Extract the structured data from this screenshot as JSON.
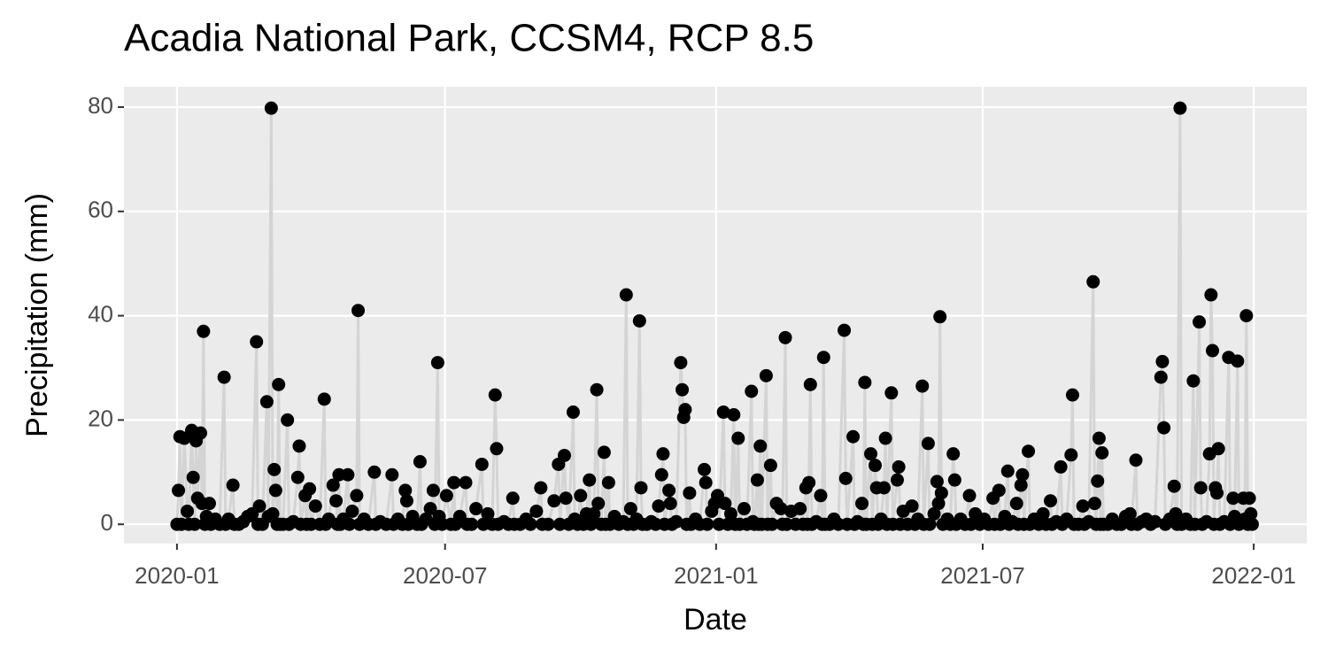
{
  "chart_data": {
    "type": "scatter-line",
    "title": "Acadia National Park, CCSM4, RCP 8.5",
    "x_label": "Date",
    "y_label": "Precipitation (mm)",
    "xlim": [
      -36,
      767
    ],
    "ylim": [
      -3.7,
      83.9
    ],
    "xticks": [
      {
        "value": 0,
        "label": "2020-01"
      },
      {
        "value": 182,
        "label": "2020-07"
      },
      {
        "value": 366,
        "label": "2021-01"
      },
      {
        "value": 547,
        "label": "2021-07"
      },
      {
        "value": 731,
        "label": "2022-01"
      }
    ],
    "yticks": [
      0,
      20,
      40,
      60,
      80
    ],
    "grid": true,
    "color": "#000000",
    "line_color": "#d4d4d4",
    "x": [
      0,
      1,
      2,
      3,
      5,
      7,
      8,
      10,
      11,
      12,
      13,
      14,
      16,
      17,
      18,
      19,
      20,
      22,
      23,
      26,
      29,
      32,
      33,
      35,
      38,
      39,
      42,
      45,
      48,
      51,
      54,
      55,
      56,
      58,
      61,
      62,
      64,
      65,
      66,
      67,
      68,
      69,
      70,
      72,
      75,
      76,
      79,
      82,
      83,
      84,
      87,
      88,
      90,
      91,
      94,
      97,
      100,
      101,
      103,
      106,
      108,
      109,
      110,
      111,
      113,
      116,
      117,
      119,
      122,
      123,
      124,
      127,
      130,
      134,
      135,
      138,
      142,
      146,
      147,
      150,
      153,
      155,
      156,
      157,
      160,
      163,
      165,
      166,
      169,
      172,
      174,
      175,
      177,
      178,
      180,
      183,
      186,
      188,
      189,
      192,
      196,
      197,
      200,
      203,
      207,
      208,
      211,
      214,
      216,
      217,
      218,
      222,
      225,
      228,
      229,
      233,
      237,
      240,
      244,
      247,
      248,
      252,
      256,
      259,
      260,
      263,
      264,
      266,
      269,
      270,
      272,
      274,
      276,
      278,
      280,
      281,
      283,
      285,
      286,
      288,
      290,
      291,
      293,
      294,
      297,
      300,
      303,
      305,
      306,
      308,
      310,
      312,
      314,
      315,
      316,
      319,
      322,
      325,
      327,
      329,
      330,
      331,
      334,
      335,
      336,
      339,
      342,
      343,
      344,
      345,
      346,
      348,
      349,
      352,
      355,
      358,
      359,
      360,
      363,
      365,
      367,
      368,
      371,
      372,
      374,
      376,
      378,
      379,
      381,
      382,
      385,
      387,
      390,
      391,
      392,
      394,
      395,
      396,
      397,
      400,
      401,
      403,
      404,
      407,
      410,
      411,
      413,
      414,
      417,
      420,
      423,
      425,
      427,
      428,
      429,
      430,
      431,
      434,
      437,
      438,
      439,
      440,
      443,
      446,
      449,
      453,
      454,
      455,
      459,
      460,
      462,
      465,
      466,
      467,
      468,
      471,
      472,
      474,
      475,
      476,
      478,
      480,
      481,
      482,
      485,
      486,
      489,
      490,
      491,
      493,
      496,
      499,
      501,
      503,
      506,
      507,
      510,
      511,
      514,
      516,
      517,
      518,
      519,
      520,
      523,
      525,
      527,
      528,
      529,
      532,
      535,
      538,
      539,
      542,
      545,
      548,
      551,
      554,
      555,
      558,
      559,
      562,
      564,
      565,
      567,
      570,
      571,
      573,
      574,
      575,
      578,
      579,
      582,
      585,
      588,
      590,
      593,
      594,
      597,
      600,
      601,
      604,
      607,
      608,
      609,
      612,
      615,
      616,
      619,
      622,
      623,
      624,
      625,
      626,
      627,
      628,
      629,
      632,
      635,
      638,
      641,
      644,
      647,
      648,
      651,
      652,
      655,
      658,
      661,
      664,
      668,
      669,
      670,
      671,
      674,
      677,
      678,
      679,
      681,
      682,
      685,
      688,
      690,
      691,
      694,
      695,
      696,
      699,
      701,
      702,
      703,
      704,
      705,
      706,
      707,
      708,
      711,
      714,
      715,
      717,
      718,
      720,
      721,
      724,
      725,
      726,
      727,
      728,
      729,
      730
    ],
    "values": [
      0,
      6.5,
      16.8,
      0,
      16.5,
      2.5,
      0,
      18,
      9,
      0,
      16,
      5,
      17.5,
      4,
      37,
      0,
      1.5,
      4,
      0,
      1,
      0,
      28.2,
      0,
      1,
      7.5,
      0,
      0,
      0.5,
      1.5,
      2,
      35,
      0,
      3.5,
      0,
      23.5,
      1.5,
      79.8,
      2,
      10.5,
      6.5,
      0,
      26.8,
      0,
      0,
      20,
      0,
      0.5,
      9,
      15,
      0,
      5.5,
      0,
      6.8,
      0,
      3.5,
      0,
      24,
      0,
      1,
      7.5,
      4.5,
      0,
      9.5,
      0,
      1,
      9.5,
      0,
      2.5,
      5.5,
      41,
      0,
      1,
      0,
      10,
      0,
      0.5,
      0,
      9.5,
      0,
      1,
      0,
      6.5,
      4.5,
      0,
      1.5,
      0,
      12,
      0,
      1,
      3,
      6.5,
      0,
      31,
      1.5,
      0,
      5.5,
      0,
      8,
      0,
      1.5,
      8,
      0,
      0,
      3,
      11.5,
      0,
      2,
      0,
      24.8,
      14.5,
      0,
      0.5,
      0,
      5,
      0,
      0,
      1,
      0,
      2.5,
      7,
      0,
      0,
      4.5,
      11.5,
      0,
      13.2,
      5,
      0,
      21.5,
      1,
      0,
      5.5,
      0,
      2,
      8.5,
      0,
      2,
      25.8,
      4,
      0,
      13.8,
      0,
      8,
      0,
      1.5,
      0,
      0.5,
      44,
      0,
      3,
      0,
      1,
      39,
      7,
      0,
      0,
      0.5,
      0,
      3.5,
      9.5,
      13.5,
      0,
      6.5,
      4,
      0,
      0.5,
      31,
      25.8,
      20.5,
      22,
      0,
      6,
      0,
      1,
      0,
      10.5,
      8,
      0,
      2.5,
      4,
      5.5,
      0,
      21.5,
      4,
      0,
      2,
      21,
      0,
      16.5,
      0,
      3,
      0,
      25.5,
      0.5,
      0,
      8.5,
      0,
      15,
      0,
      28.5,
      0,
      11.3,
      0,
      4,
      3,
      0,
      35.8,
      0,
      2.5,
      0,
      3,
      0,
      7,
      0,
      8,
      26.8,
      0,
      0.5,
      5.5,
      0,
      32,
      0,
      0,
      1,
      0,
      37.2,
      8.8,
      0,
      16.8,
      0,
      0.5,
      4,
      0,
      27.2,
      0,
      13.5,
      0,
      11.3,
      7,
      0,
      1,
      7,
      16.5,
      0,
      25.2,
      0,
      8.5,
      11,
      0,
      2.5,
      0,
      3.5,
      0,
      1,
      26.5,
      0,
      15.5,
      0,
      2,
      8.2,
      4,
      39.8,
      6,
      0,
      1,
      0,
      13.5,
      8.5,
      0,
      1,
      0,
      5.5,
      0,
      2,
      0,
      1,
      0,
      5,
      0,
      6.5,
      0,
      1.5,
      10.2,
      0,
      0.5,
      4,
      0,
      7.5,
      9.5,
      0,
      14,
      0,
      1,
      0,
      2,
      0,
      4.5,
      0,
      0.5,
      11,
      0,
      1,
      13.3,
      24.8,
      0,
      0,
      3.5,
      0,
      0.5,
      46.5,
      4,
      0,
      8.3,
      16.5,
      0,
      13.7,
      0,
      0,
      1,
      0,
      0,
      1.5,
      2,
      0,
      12.3,
      0,
      0.5,
      1,
      0,
      0.5,
      28.2,
      31.2,
      18.5,
      0,
      1,
      7.3,
      2,
      0,
      79.8,
      0,
      1,
      0,
      27.5,
      0,
      38.8,
      7,
      0,
      0.5,
      13.5,
      44,
      33.3,
      0,
      7,
      6,
      14.5,
      0,
      0.5,
      32,
      0,
      5,
      1.5,
      31.3,
      0,
      5,
      1,
      40,
      0,
      5,
      2,
      0
    ]
  }
}
